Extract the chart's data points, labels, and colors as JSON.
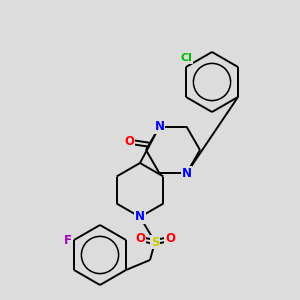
{
  "background_color": "#dcdcdc",
  "bond_color": "#000000",
  "atom_colors": {
    "N": "#0000ff",
    "O": "#ff0000",
    "S": "#cccc00",
    "Cl": "#00bb00",
    "F": "#aa00cc"
  },
  "lw": 1.4,
  "fs": 8.5
}
